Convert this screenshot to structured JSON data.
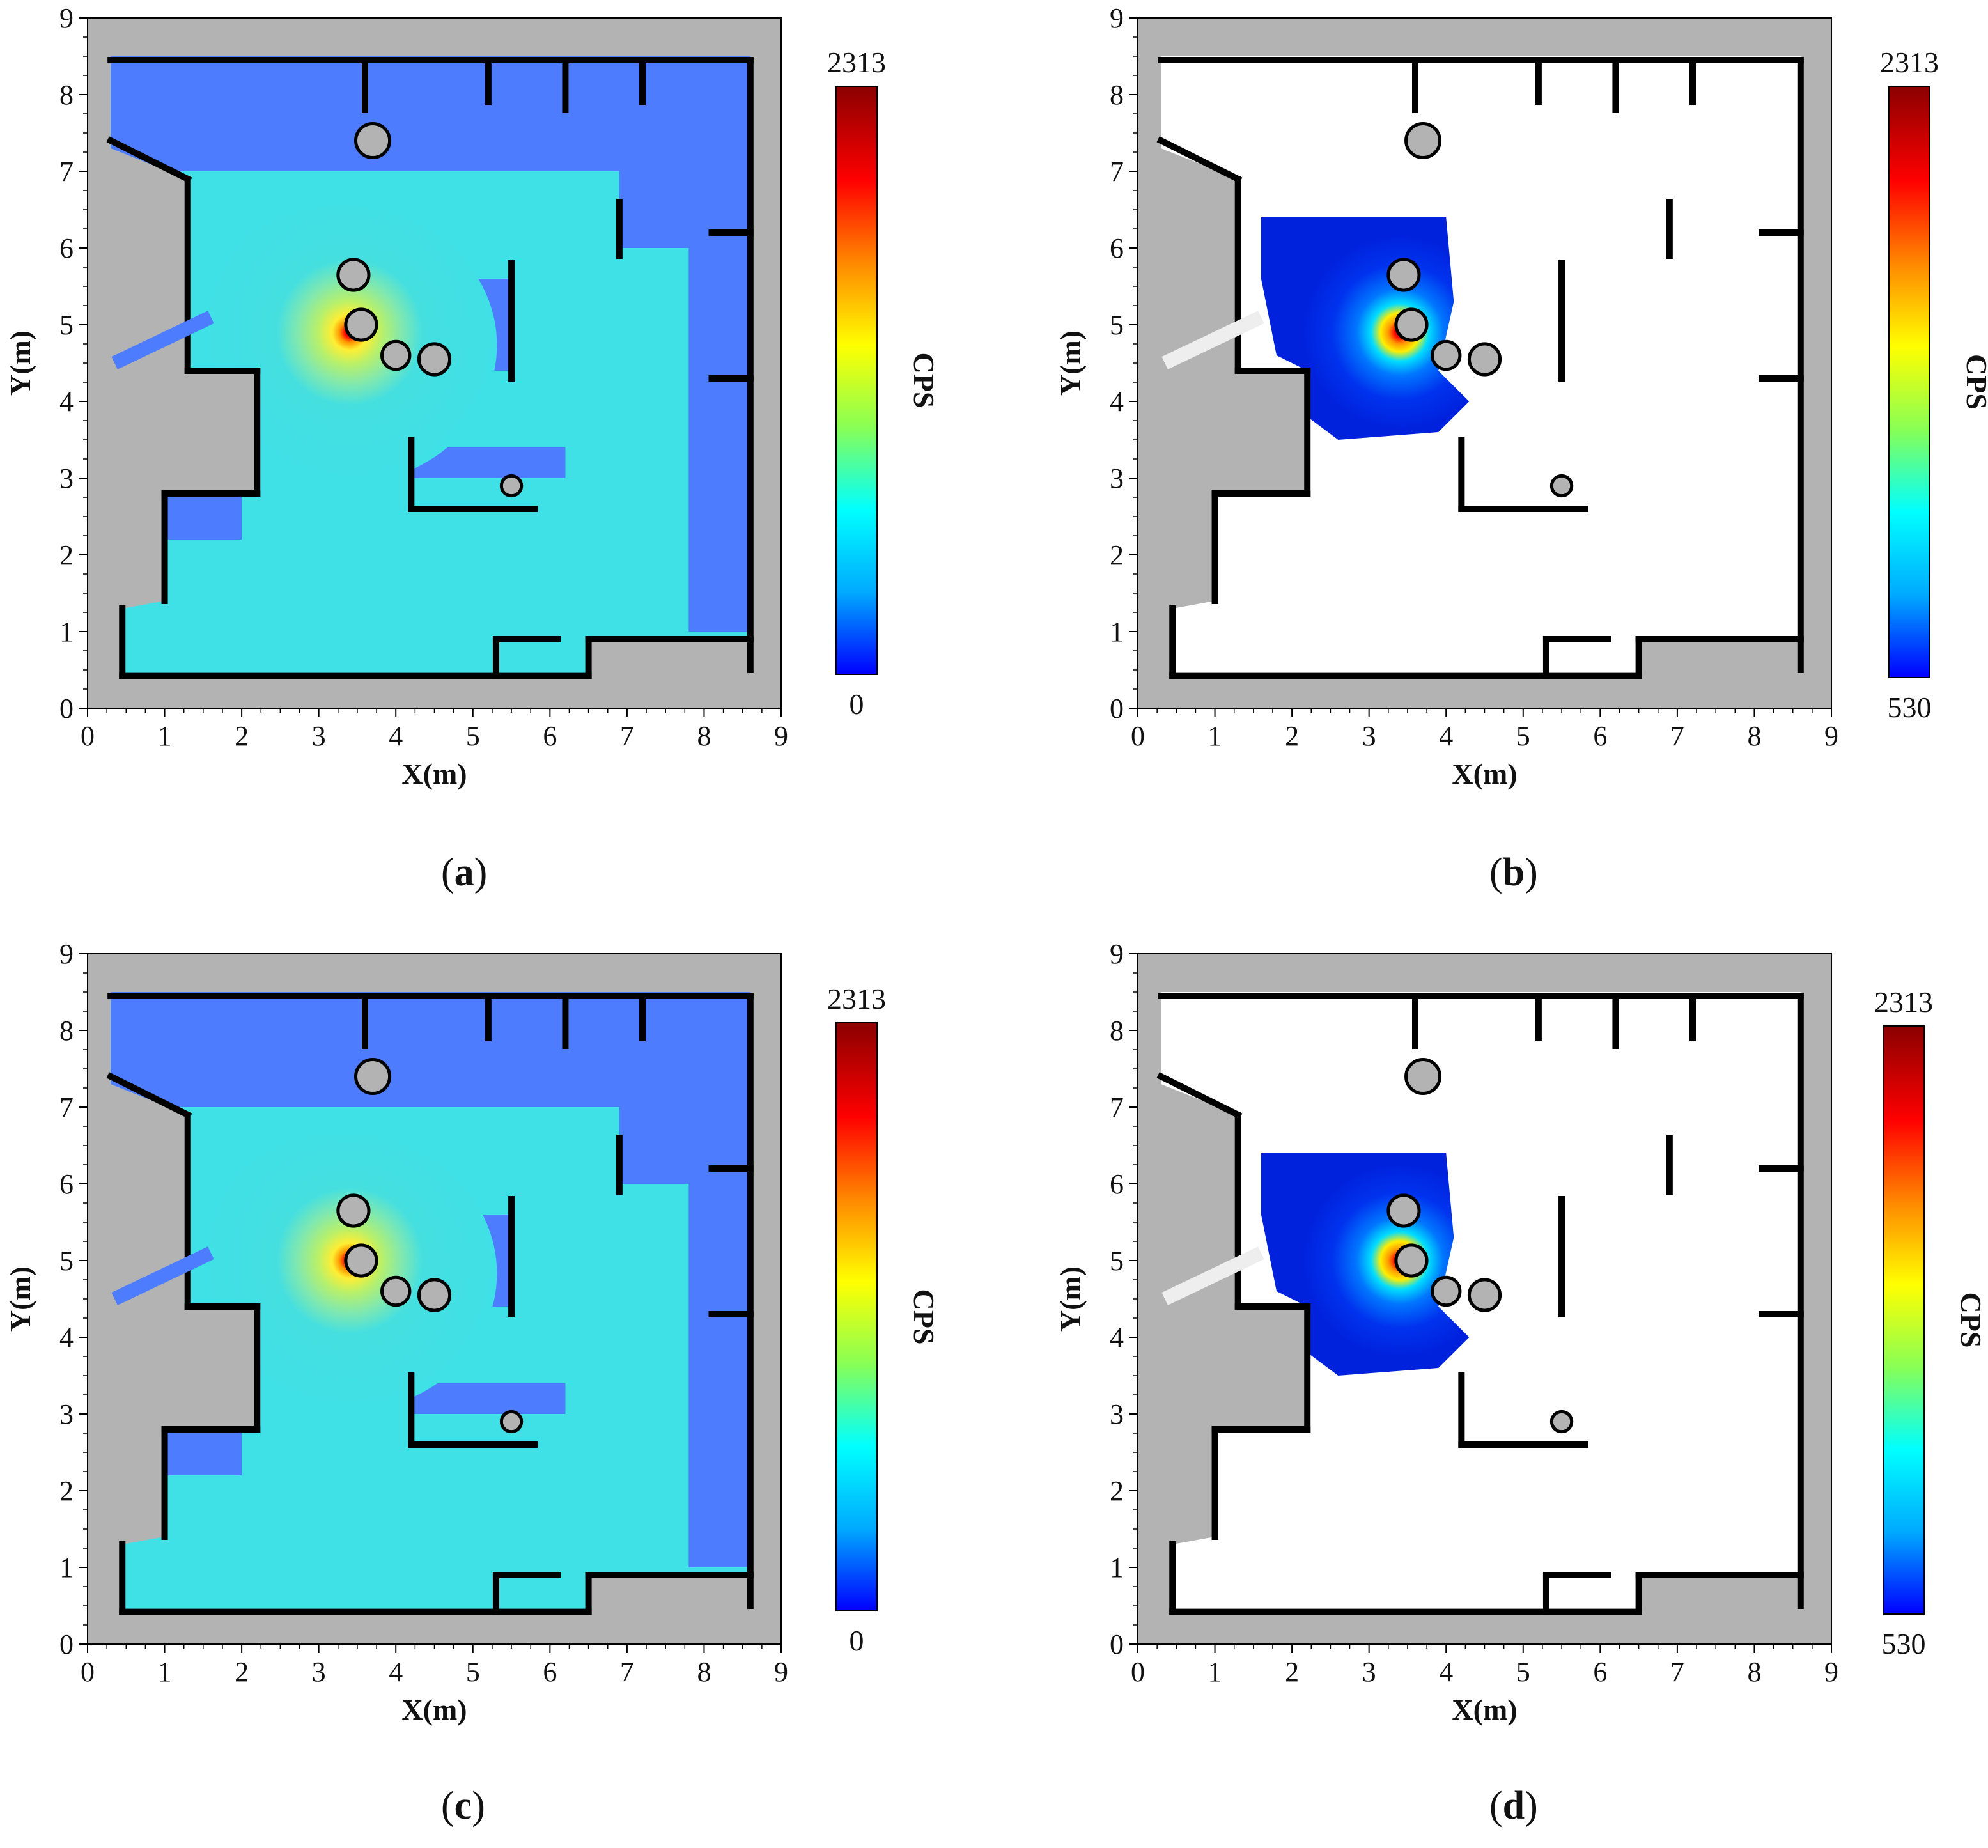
{
  "figure": {
    "panels": [
      {
        "id": "a",
        "caption_letter": "a",
        "xlabel": "X(m)",
        "ylabel": "Y(m)",
        "colorbar": {
          "title": "CPS",
          "max_label": "2313",
          "min_label": "0"
        }
      },
      {
        "id": "b",
        "caption_letter": "b",
        "xlabel": "X(m)",
        "ylabel": "Y(m)",
        "colorbar": {
          "title": "CPS",
          "max_label": "2313",
          "min_label": "530"
        }
      },
      {
        "id": "c",
        "caption_letter": "c",
        "xlabel": "X(m)",
        "ylabel": "Y(m)",
        "colorbar": {
          "title": "CPS",
          "max_label": "2313",
          "min_label": "0"
        }
      },
      {
        "id": "d",
        "caption_letter": "d",
        "xlabel": "X(m)",
        "ylabel": "Y(m)",
        "colorbar": {
          "title": "CPS",
          "max_label": "2313",
          "min_label": "530"
        }
      }
    ]
  },
  "colors": {
    "unknown_area": "#b3b3b3",
    "free_area_uncolored": "#ffffff",
    "walls": "#000000",
    "low_field_blue": "#4d7cff",
    "field_cyan": "#3fe0e6",
    "colormap_stops": [
      "#0000ff",
      "#00aaff",
      "#00ffff",
      "#88ff55",
      "#ffff00",
      "#ff8800",
      "#ff0000",
      "#8b0000"
    ]
  },
  "chart_data": [
    {
      "panel": "a",
      "type": "heatmap",
      "xlabel": "X(m)",
      "ylabel": "Y(m)",
      "xlim": [
        0,
        9
      ],
      "ylim": [
        0,
        9
      ],
      "xticks": [
        0,
        1,
        2,
        3,
        4,
        5,
        6,
        7,
        8,
        9
      ],
      "yticks": [
        0,
        1,
        2,
        3,
        4,
        5,
        6,
        7,
        8,
        9
      ],
      "colorbar": {
        "title": "CPS",
        "min": 0,
        "max": 2313
      },
      "peak": {
        "x": 3.4,
        "y": 4.9,
        "value": 2313
      },
      "display_threshold": 0
    },
    {
      "panel": "b",
      "type": "heatmap",
      "xlabel": "X(m)",
      "ylabel": "Y(m)",
      "xlim": [
        0,
        9
      ],
      "ylim": [
        0,
        9
      ],
      "xticks": [
        0,
        1,
        2,
        3,
        4,
        5,
        6,
        7,
        8,
        9
      ],
      "yticks": [
        0,
        1,
        2,
        3,
        4,
        5,
        6,
        7,
        8,
        9
      ],
      "colorbar": {
        "title": "CPS",
        "min": 530,
        "max": 2313
      },
      "peak": {
        "x": 3.4,
        "y": 4.9,
        "value": 2313
      },
      "display_threshold": 530
    },
    {
      "panel": "c",
      "type": "heatmap",
      "xlabel": "X(m)",
      "ylabel": "Y(m)",
      "xlim": [
        0,
        9
      ],
      "ylim": [
        0,
        9
      ],
      "xticks": [
        0,
        1,
        2,
        3,
        4,
        5,
        6,
        7,
        8,
        9
      ],
      "yticks": [
        0,
        1,
        2,
        3,
        4,
        5,
        6,
        7,
        8,
        9
      ],
      "colorbar": {
        "title": "CPS",
        "min": 0,
        "max": 2313
      },
      "peak": {
        "x": 3.4,
        "y": 5.0,
        "value": 2313
      },
      "display_threshold": 0
    },
    {
      "panel": "d",
      "type": "heatmap",
      "xlabel": "X(m)",
      "ylabel": "Y(m)",
      "xlim": [
        0,
        9
      ],
      "ylim": [
        0,
        9
      ],
      "xticks": [
        0,
        1,
        2,
        3,
        4,
        5,
        6,
        7,
        8,
        9
      ],
      "yticks": [
        0,
        1,
        2,
        3,
        4,
        5,
        6,
        7,
        8,
        9
      ],
      "colorbar": {
        "title": "CPS",
        "min": 530,
        "max": 2313
      },
      "peak": {
        "x": 3.4,
        "y": 5.0,
        "value": 2313
      },
      "display_threshold": 530
    }
  ]
}
